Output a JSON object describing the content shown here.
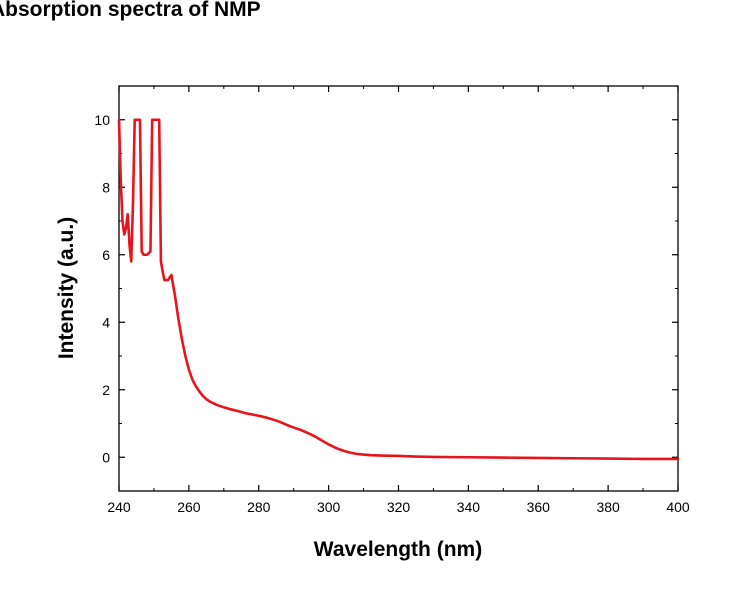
{
  "chart_data": {
    "type": "line",
    "title": "Absorption spectra of NMP",
    "xlabel": "Wavelength (nm)",
    "ylabel": "Intensity (a.u.)",
    "xlim": [
      240,
      400
    ],
    "ylim": [
      -1,
      11
    ],
    "xticks": [
      240,
      260,
      280,
      300,
      320,
      340,
      360,
      380,
      400
    ],
    "yticks": [
      0,
      2,
      4,
      6,
      8,
      10
    ],
    "grid": false,
    "series": [
      {
        "color": "#e8141b",
        "x": [
          240,
          240.5,
          241,
          241.5,
          242,
          242.5,
          243,
          243.5,
          244,
          244.5,
          245,
          245.5,
          246,
          246.5,
          247,
          248,
          249,
          249.5,
          250,
          250.5,
          251,
          251.5,
          252,
          252.5,
          253,
          254,
          255,
          256,
          257,
          258,
          259,
          260,
          261,
          262,
          263,
          264,
          265,
          266,
          268,
          270,
          272,
          274,
          276,
          278,
          280,
          282,
          284,
          286,
          288,
          290,
          292,
          294,
          296,
          298,
          300,
          302,
          304,
          306,
          308,
          310,
          312,
          315,
          320,
          325,
          330,
          340,
          350,
          360,
          370,
          380,
          390,
          400
        ],
        "y": [
          10,
          8.2,
          7,
          6.6,
          6.8,
          7.2,
          6.3,
          5.8,
          7.5,
          10,
          10,
          10,
          10,
          6.1,
          6.0,
          6.0,
          6.1,
          10,
          10,
          10,
          10,
          10,
          5.8,
          5.5,
          5.25,
          5.25,
          5.4,
          4.8,
          4.1,
          3.5,
          3.0,
          2.6,
          2.3,
          2.1,
          1.95,
          1.82,
          1.72,
          1.65,
          1.55,
          1.48,
          1.42,
          1.37,
          1.31,
          1.27,
          1.23,
          1.18,
          1.12,
          1.05,
          0.96,
          0.88,
          0.81,
          0.72,
          0.62,
          0.5,
          0.38,
          0.28,
          0.2,
          0.14,
          0.1,
          0.08,
          0.06,
          0.05,
          0.04,
          0.02,
          0.01,
          0.0,
          -0.01,
          -0.02,
          -0.03,
          -0.04,
          -0.05,
          -0.05
        ]
      }
    ]
  }
}
